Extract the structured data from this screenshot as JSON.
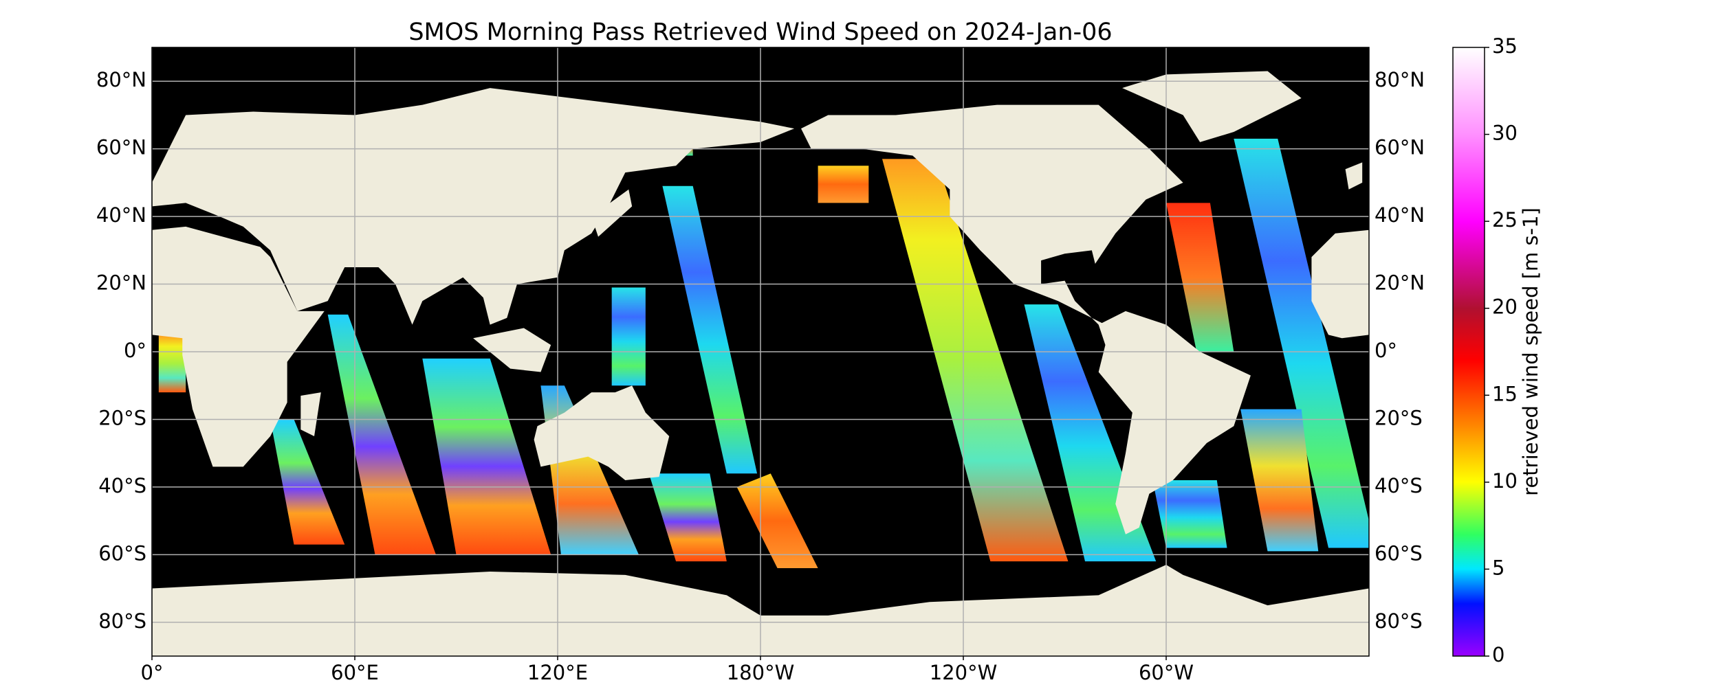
{
  "map": {
    "title": "SMOS Morning Pass Retrieved Wind Speed on 2024-Jan-06",
    "xlim": [
      0,
      360
    ],
    "ylim": [
      -90,
      90
    ],
    "xticks": [
      {
        "value": 0,
        "label": "0°"
      },
      {
        "value": 60,
        "label": "60°E"
      },
      {
        "value": 120,
        "label": "120°E"
      },
      {
        "value": 180,
        "label": "180°W"
      },
      {
        "value": -120,
        "label": "120°W"
      },
      {
        "value": -60,
        "label": "60°W"
      }
    ],
    "yticks": [
      {
        "value": 80,
        "label": "80°N"
      },
      {
        "value": 60,
        "label": "60°N"
      },
      {
        "value": 40,
        "label": "40°N"
      },
      {
        "value": 20,
        "label": "20°N"
      },
      {
        "value": 0,
        "label": "0°"
      },
      {
        "value": -20,
        "label": "20°S"
      },
      {
        "value": -40,
        "label": "40°S"
      },
      {
        "value": -60,
        "label": "60°S"
      },
      {
        "value": -80,
        "label": "80°S"
      }
    ],
    "grid": true,
    "colorbar": {
      "label": "retrieved wind speed [m s-1]",
      "lim": [
        0,
        35
      ],
      "ticks": [
        0,
        5,
        10,
        15,
        20,
        25,
        30,
        35
      ]
    }
  }
}
